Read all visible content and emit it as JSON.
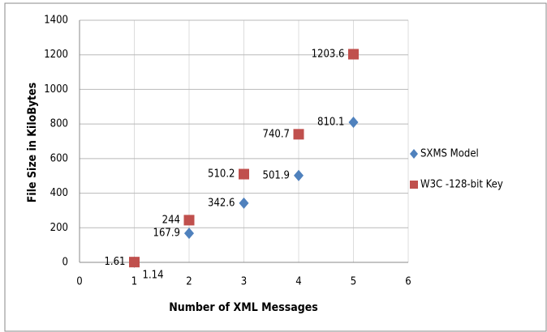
{
  "chart_data": {
    "type": "scatter",
    "x_label": "Number of XML Messages",
    "y_label": "File Size in KiloBytes",
    "series": [
      {
        "name": "SXMS Model",
        "color": "#4f81bd",
        "marker": "diamond",
        "x": [
          1,
          2,
          3,
          4,
          5
        ],
        "values": [
          1.14,
          167.9,
          342.6,
          501.9,
          810.1
        ]
      },
      {
        "name": "W3C -128-bit Key",
        "color": "#c0504d",
        "marker": "square",
        "x": [
          1,
          2,
          3,
          4,
          5
        ],
        "values": [
          1.61,
          244,
          510.2,
          740.7,
          1203.6
        ]
      }
    ],
    "xlim": [
      0,
      6
    ],
    "xticks": [
      0,
      1,
      2,
      3,
      4,
      5,
      6
    ],
    "ylim": [
      0,
      1400
    ],
    "yticks": [
      0,
      200,
      400,
      600,
      800,
      1000,
      1200,
      1400
    ],
    "grid": true,
    "legend": "right"
  }
}
